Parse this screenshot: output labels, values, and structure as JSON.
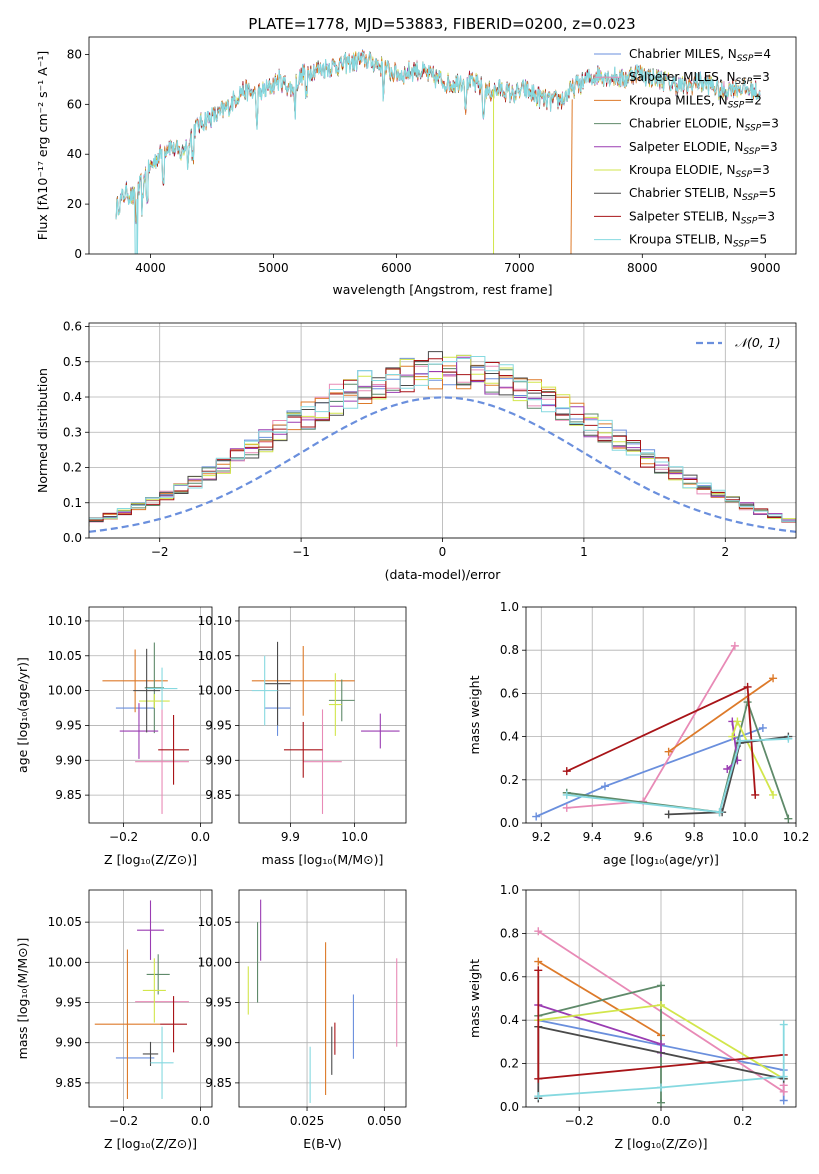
{
  "figure": {
    "title": "PLATE=1778, MJD=53883, FIBERID=0200, z=0.023"
  },
  "colors": [
    "#6a8fdd",
    "#e88ab6",
    "#dd7a2a",
    "#5f8a6a",
    "#9a3cb2",
    "#d2e64c",
    "#4a4a4a",
    "#a81418",
    "#86d9e0"
  ],
  "chart_data": [
    {
      "id": "spectrum",
      "type": "line",
      "xlabel": "wavelength [Angstrom, rest frame]",
      "ylabel": "Flux [fλ10⁻¹⁷ erg cm⁻² s⁻¹ A⁻¹]",
      "xlim": [
        3500,
        9250
      ],
      "ylim": [
        0,
        87
      ],
      "xticks": [
        4000,
        5000,
        6000,
        7000,
        8000,
        9000
      ],
      "yticks": [
        0,
        20,
        40,
        60,
        80
      ],
      "grid": false,
      "legend": "top-right",
      "spectrum_envelope": {
        "x": [
          3720,
          3800,
          3880,
          3950,
          4050,
          4150,
          4250,
          4350,
          4450,
          4550,
          4650,
          4750,
          4850,
          4950,
          5050,
          5150,
          5250,
          5350,
          5450,
          5550,
          5650,
          5750,
          5850,
          5950,
          6050,
          6150,
          6250,
          6350,
          6450,
          6550,
          6650,
          6750,
          6850,
          6950,
          7050,
          7150,
          7250,
          7350,
          7450,
          7550,
          7650,
          7750,
          7850,
          7950,
          8050,
          8150,
          8250,
          8350,
          8450,
          8550,
          8650,
          8750,
          8850,
          8950
        ],
        "y": [
          18,
          25,
          22,
          32,
          38,
          44,
          40,
          50,
          54,
          56,
          60,
          66,
          64,
          66,
          70,
          66,
          73,
          74,
          75,
          76,
          77,
          78,
          76,
          73,
          72,
          74,
          72,
          70,
          68,
          70,
          68,
          65,
          66,
          64,
          66,
          63,
          61,
          62,
          67,
          70,
          72,
          71,
          70,
          73,
          71,
          70,
          68,
          67,
          69,
          68,
          65,
          67,
          66,
          65
        ]
      },
      "series": [
        {
          "name": "Chabrier MILES, N",
          "sub": "SSP",
          "suffix": "=4"
        },
        {
          "name": "Salpeter MILES, N",
          "sub": "SSP",
          "suffix": "=3"
        },
        {
          "name": "Kroupa MILES, N",
          "sub": "SSP",
          "suffix": "=2"
        },
        {
          "name": "Chabrier ELODIE, N",
          "sub": "SSP",
          "suffix": "=3"
        },
        {
          "name": "Salpeter ELODIE, N",
          "sub": "SSP",
          "suffix": "=3"
        },
        {
          "name": "Kroupa ELODIE, N",
          "sub": "SSP",
          "suffix": "=3"
        },
        {
          "name": "Chabrier STELIB, N",
          "sub": "SSP",
          "suffix": "=5"
        },
        {
          "name": "Salpeter STELIB, N",
          "sub": "SSP",
          "suffix": "=3"
        },
        {
          "name": "Kroupa STELIB, N",
          "sub": "SSP",
          "suffix": "=5"
        }
      ]
    },
    {
      "id": "residuals",
      "type": "histogram",
      "xlabel": "(data-model)/error",
      "ylabel": "Normed distribution",
      "xlim": [
        -2.5,
        2.5
      ],
      "ylim": [
        0,
        0.61
      ],
      "xticks": [
        -2,
        -1,
        0,
        1,
        2
      ],
      "yticks": [
        0.0,
        0.1,
        0.2,
        0.3,
        0.4,
        0.5,
        0.6
      ],
      "grid": true,
      "legend": "top-right",
      "legend_label": "𝒩(0, 1)",
      "bin_width": 0.1
    },
    {
      "id": "age-vs-Z",
      "type": "errorbar",
      "xlabel": "Z [log₁₀(Z/Z⊙)]",
      "ylabel": "age  [log₁₀(age/yr)]",
      "xlim": [
        -0.29,
        0.03
      ],
      "ylim": [
        9.81,
        10.12
      ],
      "xticks": [
        -0.2,
        0.0
      ],
      "yticks": [
        9.85,
        9.9,
        9.95,
        10.0,
        10.05,
        10.1
      ],
      "grid": true,
      "points": [
        {
          "x": -0.17,
          "y": 9.975,
          "xerr": 0.05,
          "yerr": 0.0
        },
        {
          "x": -0.1,
          "y": 9.898,
          "xerr": 0.07,
          "yerr": 0.075
        },
        {
          "x": -0.17,
          "y": 10.014,
          "xerr": 0.085,
          "yerr": 0.045
        },
        {
          "x": -0.12,
          "y": 10.004,
          "xerr": 0.025,
          "yerr": 0.065
        },
        {
          "x": -0.16,
          "y": 9.942,
          "xerr": 0.05,
          "yerr": 0.04
        },
        {
          "x": -0.12,
          "y": 9.985,
          "xerr": 0.04,
          "yerr": 0.01
        },
        {
          "x": -0.14,
          "y": 10.0,
          "xerr": 0.035,
          "yerr": 0.06
        },
        {
          "x": -0.07,
          "y": 9.915,
          "xerr": 0.04,
          "yerr": 0.05
        },
        {
          "x": -0.1,
          "y": 10.003,
          "xerr": 0.04,
          "yerr": 0.03
        }
      ]
    },
    {
      "id": "age-vs-mass",
      "type": "errorbar",
      "xlabel": "mass [log₁₀(M/M⊙)]",
      "ylabel": "",
      "xlim": [
        9.82,
        10.08
      ],
      "ylim": [
        9.81,
        10.12
      ],
      "xticks": [
        9.9,
        10.0
      ],
      "yticks": [
        9.85,
        9.9,
        9.95,
        10.0,
        10.05,
        10.1
      ],
      "grid": true,
      "points": [
        {
          "x": 9.88,
          "y": 9.975,
          "xerr": 0.02,
          "yerr": 0.04
        },
        {
          "x": 9.95,
          "y": 9.898,
          "xerr": 0.03,
          "yerr": 0.075
        },
        {
          "x": 9.92,
          "y": 10.014,
          "xerr": 0.08,
          "yerr": 0.05
        },
        {
          "x": 9.98,
          "y": 9.986,
          "xerr": 0.02,
          "yerr": 0.03
        },
        {
          "x": 10.04,
          "y": 9.942,
          "xerr": 0.03,
          "yerr": 0.025
        },
        {
          "x": 9.97,
          "y": 9.98,
          "xerr": 0.01,
          "yerr": 0.045
        },
        {
          "x": 9.88,
          "y": 10.01,
          "xerr": 0.02,
          "yerr": 0.06
        },
        {
          "x": 9.92,
          "y": 9.915,
          "xerr": 0.03,
          "yerr": 0.04
        },
        {
          "x": 9.86,
          "y": 10.0,
          "xerr": 0.02,
          "yerr": 0.05
        }
      ]
    },
    {
      "id": "mass-weight-vs-age",
      "type": "line",
      "xlabel": "age  [log₁₀(age/yr)]",
      "ylabel": "mass weight",
      "xlim": [
        9.14,
        10.2
      ],
      "ylim": [
        0,
        1
      ],
      "xticks": [
        9.2,
        9.4,
        9.6,
        9.8,
        10.0,
        10.2
      ],
      "yticks": [
        0.0,
        0.2,
        0.4,
        0.6,
        0.8,
        1.0
      ],
      "grid": true,
      "series": [
        {
          "x": [
            9.18,
            9.45,
            10.07
          ],
          "y": [
            0.03,
            0.17,
            0.44
          ]
        },
        {
          "x": [
            9.3,
            9.6,
            9.96
          ],
          "y": [
            0.07,
            0.1,
            0.82
          ]
        },
        {
          "x": [
            9.7,
            10.11
          ],
          "y": [
            0.33,
            0.67
          ]
        },
        {
          "x": [
            9.3,
            9.9,
            10.01,
            10.17
          ],
          "y": [
            0.14,
            0.05,
            0.56,
            0.02
          ]
        },
        {
          "x": [
            9.95,
            9.97,
            9.93
          ],
          "y": [
            0.47,
            0.29,
            0.25
          ]
        },
        {
          "x": [
            9.95,
            9.97,
            10.11
          ],
          "y": [
            0.4,
            0.47,
            0.13
          ]
        },
        {
          "x": [
            9.7,
            9.91,
            9.98,
            10.17
          ],
          "y": [
            0.04,
            0.05,
            0.37,
            0.4
          ]
        },
        {
          "x": [
            9.3,
            10.01,
            10.04
          ],
          "y": [
            0.24,
            0.63,
            0.13
          ]
        },
        {
          "x": [
            9.3,
            9.9,
            9.98,
            10.17
          ],
          "y": [
            0.13,
            0.05,
            0.38,
            0.39
          ]
        }
      ]
    },
    {
      "id": "mass-vs-Z",
      "type": "errorbar",
      "xlabel": "Z [log₁₀(Z/Z⊙)]",
      "ylabel": "mass [log₁₀(M/M⊙)]",
      "xlim": [
        -0.29,
        0.03
      ],
      "ylim": [
        9.82,
        10.09
      ],
      "xticks": [
        -0.2,
        0.0
      ],
      "yticks": [
        9.85,
        9.9,
        9.95,
        10.0,
        10.05
      ],
      "grid": true,
      "points": [
        {
          "x": -0.17,
          "y": 9.881,
          "xerr": 0.05,
          "yerr": 0.0
        },
        {
          "x": -0.1,
          "y": 9.951,
          "xerr": 0.07,
          "yerr": 0.0
        },
        {
          "x": -0.19,
          "y": 9.923,
          "xerr": 0.085,
          "yerr": 0.093
        },
        {
          "x": -0.11,
          "y": 9.985,
          "xerr": 0.03,
          "yerr": 0.025
        },
        {
          "x": -0.13,
          "y": 10.04,
          "xerr": 0.035,
          "yerr": 0.037
        },
        {
          "x": -0.12,
          "y": 9.965,
          "xerr": 0.03,
          "yerr": 0.04
        },
        {
          "x": -0.13,
          "y": 9.886,
          "xerr": 0.02,
          "yerr": 0.015
        },
        {
          "x": -0.07,
          "y": 9.923,
          "xerr": 0.035,
          "yerr": 0.035
        },
        {
          "x": -0.1,
          "y": 9.875,
          "xerr": 0.03,
          "yerr": 0.045
        }
      ]
    },
    {
      "id": "mass-vs-ebv",
      "type": "errorbar",
      "xlabel": "E(B-V)",
      "ylabel": "",
      "xlim": [
        0.003,
        0.057
      ],
      "ylim": [
        9.82,
        10.09
      ],
      "xticks": [
        0.025,
        0.05
      ],
      "yticks": [
        9.85,
        9.9,
        9.95,
        10.0,
        10.05
      ],
      "grid": true,
      "points": [
        {
          "x": 0.04,
          "y": 9.92,
          "xerr": 0.0,
          "yerr": 0.04
        },
        {
          "x": 0.054,
          "y": 9.95,
          "xerr": 0.0,
          "yerr": 0.055
        },
        {
          "x": 0.031,
          "y": 9.93,
          "xerr": 0.0,
          "yerr": 0.095
        },
        {
          "x": 0.009,
          "y": 10.0,
          "xerr": 0.0,
          "yerr": 0.05
        },
        {
          "x": 0.01,
          "y": 10.04,
          "xerr": 0.0,
          "yerr": 0.038
        },
        {
          "x": 0.006,
          "y": 9.965,
          "xerr": 0.0,
          "yerr": 0.03
        },
        {
          "x": 0.033,
          "y": 9.89,
          "xerr": 0.0,
          "yerr": 0.03
        },
        {
          "x": 0.034,
          "y": 9.905,
          "xerr": 0.0,
          "yerr": 0.02
        },
        {
          "x": 0.026,
          "y": 9.86,
          "xerr": 0.0,
          "yerr": 0.035
        }
      ]
    },
    {
      "id": "mass-weight-vs-Z",
      "type": "line",
      "xlabel": "Z [log₁₀(Z/Z⊙)]",
      "ylabel": "mass weight",
      "xlim": [
        -0.33,
        0.33
      ],
      "ylim": [
        0,
        1
      ],
      "xticks": [
        -0.2,
        0.0,
        0.2
      ],
      "yticks": [
        0.0,
        0.2,
        0.4,
        0.6,
        0.8,
        1.0
      ],
      "grid": true,
      "series": [
        {
          "x": [
            -0.3,
            0.3,
            0.3
          ],
          "y": [
            0.4,
            0.17,
            0.03
          ]
        },
        {
          "x": [
            -0.3,
            0.3,
            0.3
          ],
          "y": [
            0.81,
            0.07,
            0.1
          ]
        },
        {
          "x": [
            -0.3,
            0.0
          ],
          "y": [
            0.67,
            0.33
          ]
        },
        {
          "x": [
            -0.3,
            0.0,
            0.0
          ],
          "y": [
            0.42,
            0.56,
            0.02
          ]
        },
        {
          "x": [
            -0.3,
            0.0,
            0.0
          ],
          "y": [
            0.47,
            0.29,
            0.25
          ]
        },
        {
          "x": [
            -0.3,
            0.0,
            0.3
          ],
          "y": [
            0.4,
            0.47,
            0.13
          ]
        },
        {
          "x": [
            -0.3,
            -0.3,
            0.3
          ],
          "y": [
            0.04,
            0.37,
            0.13
          ]
        },
        {
          "x": [
            -0.3,
            -0.3,
            0.3
          ],
          "y": [
            0.63,
            0.13,
            0.24
          ]
        },
        {
          "x": [
            -0.3,
            0.0,
            0.3,
            0.3
          ],
          "y": [
            0.05,
            0.09,
            0.14,
            0.38
          ]
        }
      ]
    }
  ]
}
